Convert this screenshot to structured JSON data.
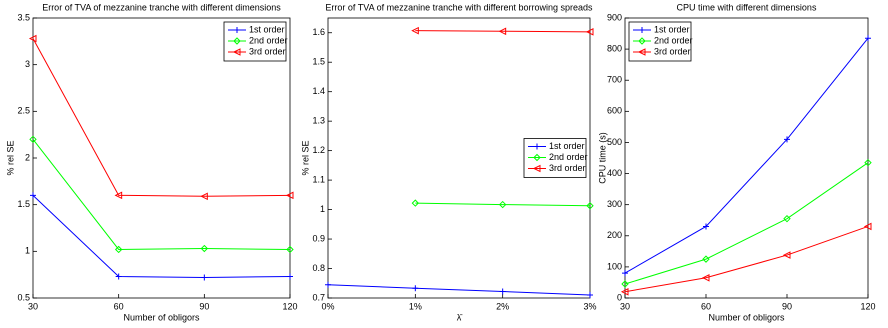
{
  "chart_data": [
    {
      "type": "line",
      "title": "Error of TVA of mezzanine tranche with different dimensions",
      "xlabel": "Number of obligors",
      "ylabel": "% rel SE",
      "x": [
        30,
        60,
        90,
        120
      ],
      "xlim": [
        30,
        120
      ],
      "xticks": [
        30,
        60,
        90,
        120
      ],
      "ylim": [
        0.5,
        3.5
      ],
      "yticks": [
        0.5,
        1,
        1.5,
        2,
        2.5,
        3,
        3.5
      ],
      "legend": "upper right",
      "series": [
        {
          "name": "1st order",
          "color": "#0000ff",
          "marker": "plus",
          "values": [
            1.6,
            0.73,
            0.72,
            0.73
          ]
        },
        {
          "name": "2nd order",
          "color": "#00ff00",
          "marker": "diamond",
          "values": [
            2.2,
            1.02,
            1.03,
            1.02
          ]
        },
        {
          "name": "3rd order",
          "color": "#ff0000",
          "marker": "triangle-left",
          "values": [
            3.28,
            1.6,
            1.59,
            1.6
          ]
        }
      ]
    },
    {
      "type": "line",
      "title": "Error of TVA of mezzanine tranche with different borrowing spreads",
      "xlabel": "λ̄",
      "ylabel": "% rel SE",
      "x": [
        0,
        1,
        2,
        3
      ],
      "xlim": [
        0,
        3
      ],
      "xticks": [
        {
          "value": 0,
          "label": "0%"
        },
        {
          "value": 1,
          "label": "1%"
        },
        {
          "value": 2,
          "label": "2%"
        },
        {
          "value": 3,
          "label": "3%"
        }
      ],
      "ylim": [
        0.7,
        1.65
      ],
      "yticks": [
        0.7,
        0.8,
        0.9,
        1,
        1.1,
        1.2,
        1.3,
        1.4,
        1.5,
        1.6
      ],
      "legend": "right",
      "series": [
        {
          "name": "1st order",
          "color": "#0000ff",
          "marker": "plus",
          "values": [
            0.745,
            0.733,
            0.722,
            0.71
          ]
        },
        {
          "name": "2nd order",
          "color": "#00ff00",
          "marker": "diamond",
          "values": [
            null,
            1.022,
            1.017,
            1.013
          ]
        },
        {
          "name": "3rd order",
          "color": "#ff0000",
          "marker": "triangle-left",
          "values": [
            null,
            1.607,
            1.605,
            1.603
          ]
        }
      ]
    },
    {
      "type": "line",
      "title": "CPU time with different dimensions",
      "xlabel": "Number of obligors",
      "ylabel": "CPU time (s)",
      "x": [
        30,
        60,
        90,
        120
      ],
      "xlim": [
        30,
        120
      ],
      "xticks": [
        30,
        60,
        90,
        120
      ],
      "ylim": [
        0,
        900
      ],
      "yticks": [
        0,
        100,
        200,
        300,
        400,
        500,
        600,
        700,
        800,
        900
      ],
      "legend": "upper left",
      "series": [
        {
          "name": "1st order",
          "color": "#0000ff",
          "marker": "plus",
          "values": [
            80,
            230,
            510,
            835
          ]
        },
        {
          "name": "2nd order",
          "color": "#00ff00",
          "marker": "diamond",
          "values": [
            45,
            125,
            255,
            435
          ]
        },
        {
          "name": "3rd order",
          "color": "#ff0000",
          "marker": "triangle-left",
          "values": [
            20,
            65,
            138,
            230
          ]
        }
      ]
    }
  ]
}
